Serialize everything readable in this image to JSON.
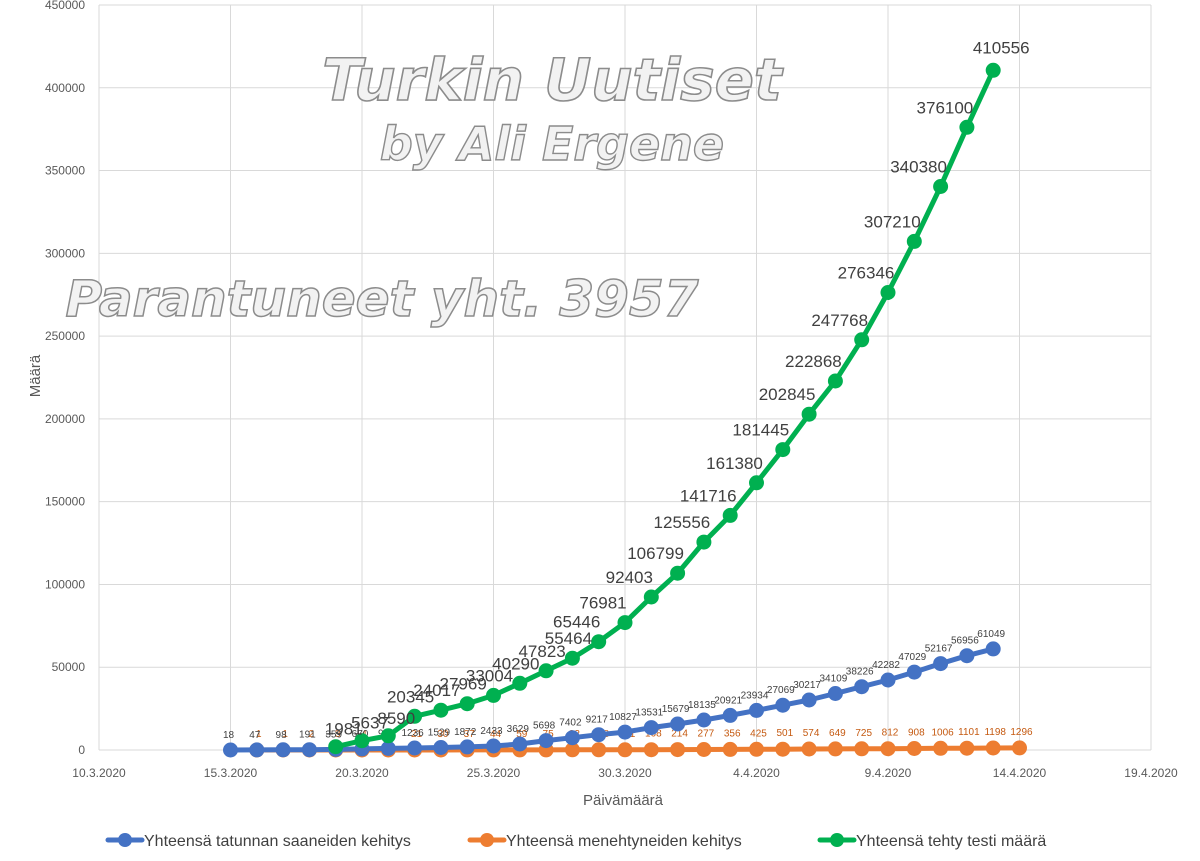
{
  "chart_data": {
    "type": "line",
    "title": "",
    "xlabel": "Päivämäärä",
    "ylabel": "Määrä",
    "x_ticks": [
      "10.3.2020",
      "15.3.2020",
      "20.3.2020",
      "25.3.2020",
      "30.3.2020",
      "4.4.2020",
      "9.4.2020",
      "14.4.2020",
      "19.4.2020"
    ],
    "x_start": "10.3.2020",
    "y_ticks": [
      "0",
      "50000",
      "100000",
      "150000",
      "200000",
      "250000",
      "300000",
      "350000",
      "400000",
      "450000"
    ],
    "ylim": [
      0,
      450000
    ],
    "grid": true,
    "legend_position": "bottom",
    "series": [
      {
        "name": "Yhteensä tatunnan saaneiden kehitys",
        "color": "#4472C4",
        "start_date": "15.3.2020",
        "values": [
          18,
          47,
          98,
          191,
          359,
          670,
          947,
          1236,
          1529,
          1872,
          2433,
          3629,
          5698,
          7402,
          9217,
          10827,
          13531,
          15679,
          18135,
          20921,
          23934,
          27069,
          30217,
          34109,
          38226,
          42282,
          47029,
          52167,
          56956,
          61049
        ],
        "labels": [
          "18",
          "47",
          "98",
          "191",
          "359",
          "670",
          "947",
          "1236",
          "1529",
          "1872",
          "2433",
          "3629",
          "5698",
          "7402",
          "9217",
          "10827",
          "13531",
          "15679",
          "18135",
          "20921",
          "23934",
          "27069",
          "30217",
          "34109",
          "38226",
          "42282",
          "47029",
          "52167",
          "56956",
          "61049"
        ]
      },
      {
        "name": "Yhteensä menehtyneiden kehitys",
        "color": "#ED7D31",
        "start_date": "16.3.2020",
        "values": [
          1,
          1,
          2,
          3,
          4,
          9,
          21,
          30,
          37,
          44,
          59,
          75,
          92,
          108,
          131,
          168,
          214,
          277,
          356,
          425,
          501,
          574,
          649,
          725,
          812,
          908,
          1006,
          1101,
          1198,
          1296
        ],
        "labels": [
          "1",
          "1",
          "2",
          "3",
          "4",
          "9",
          "21",
          "30",
          "37",
          "44",
          "59",
          "75",
          "92",
          "108",
          "131",
          "168",
          "214",
          "277",
          "356",
          "425",
          "501",
          "574",
          "649",
          "725",
          "812",
          "908",
          "1006",
          "1101",
          "1198",
          "1296"
        ]
      },
      {
        "name": "Yhteensä tehty testi määrä",
        "color": "#00B050",
        "start_date": "19.3.2020",
        "values": [
          1981,
          5637,
          8590,
          20345,
          24017,
          27969,
          33004,
          40290,
          47823,
          55464,
          65446,
          76981,
          92403,
          106799,
          125556,
          141716,
          161380,
          181445,
          202845,
          222868,
          247768,
          276346,
          307210,
          340380,
          376100,
          410556
        ],
        "labels": [
          "1981",
          "5637",
          "8590",
          "20345",
          "24017",
          "27969",
          "33004",
          "40290",
          "47823",
          "55464",
          "65446",
          "76981",
          "92403",
          "106799",
          "125556",
          "141716",
          "161380",
          "181445",
          "202845",
          "222868",
          "247768",
          "276346",
          "307210",
          "340380",
          "376100",
          "410556"
        ]
      }
    ]
  },
  "watermark": {
    "title": "Turkin Uutiset",
    "byline": "by Ali Ergene",
    "recovered": "Parantuneet yht. 3957"
  }
}
